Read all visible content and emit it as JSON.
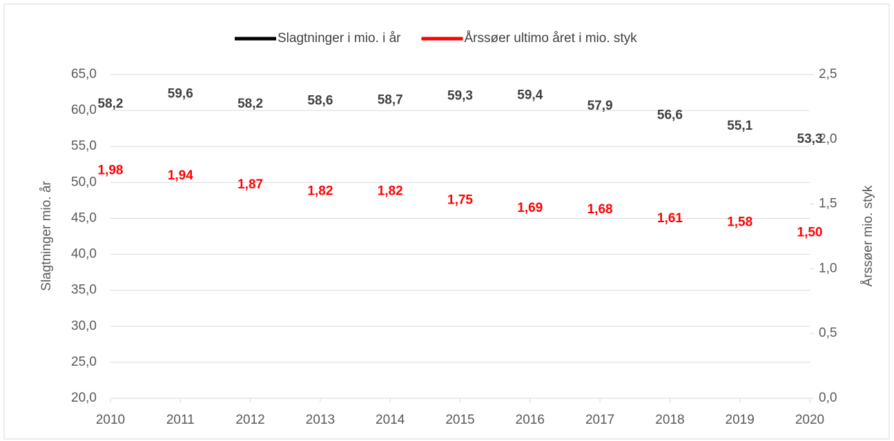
{
  "chart_data": {
    "type": "line",
    "categories": [
      "2010",
      "2011",
      "2012",
      "2013",
      "2014",
      "2015",
      "2016",
      "2017",
      "2018",
      "2019",
      "2020"
    ],
    "ylabel": "Slagtninger mio. år",
    "y2label": "Årssøer mio. styk",
    "series": [
      {
        "name": "Slagtninger i mio. i år",
        "color": "#000000",
        "values": [
          58.2,
          59.6,
          58.2,
          58.6,
          58.7,
          59.3,
          59.4,
          57.9,
          56.6,
          55.1,
          53.3
        ],
        "value_labels": [
          "58,2",
          "59,6",
          "58,2",
          "58,6",
          "58,7",
          "59,3",
          "59,4",
          "57,9",
          "56,6",
          "55,1",
          "53,3"
        ]
      },
      {
        "name": "Årssøer ultimo året i mio. styk",
        "color": "#ff0000",
        "axis": "y2",
        "values": [
          1.98,
          1.94,
          1.87,
          1.82,
          1.82,
          1.75,
          1.69,
          1.68,
          1.61,
          1.58,
          1.5
        ],
        "value_labels": [
          "1,98",
          "1,94",
          "1,87",
          "1,82",
          "1,82",
          "1,75",
          "1,69",
          "1,68",
          "1,61",
          "1,58",
          "1,50"
        ]
      }
    ],
    "ylim": [
      20,
      65
    ],
    "yticks": [
      {
        "value": 20,
        "label": "20,0"
      },
      {
        "value": 25,
        "label": "25,0"
      },
      {
        "value": 30,
        "label": "30,0"
      },
      {
        "value": 35,
        "label": "35,0"
      },
      {
        "value": 40,
        "label": "40,0"
      },
      {
        "value": 45,
        "label": "45,0"
      },
      {
        "value": 50,
        "label": "50,0"
      },
      {
        "value": 55,
        "label": "55,0"
      },
      {
        "value": 60,
        "label": "60,0"
      },
      {
        "value": 65,
        "label": "65,0"
      }
    ],
    "y2lim": [
      0,
      2.5
    ],
    "y2ticks": [
      {
        "value": 0,
        "label": "0,0"
      },
      {
        "value": 0.5,
        "label": "0,5"
      },
      {
        "value": 1,
        "label": "1,0"
      },
      {
        "value": 1.5,
        "label": "1,5"
      },
      {
        "value": 2,
        "label": "2,0"
      },
      {
        "value": 2.5,
        "label": "2,5"
      }
    ],
    "grid": true,
    "legend": "top"
  }
}
